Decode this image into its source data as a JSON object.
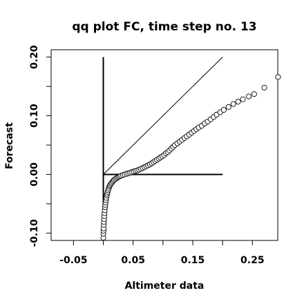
{
  "chart_data": {
    "type": "scatter",
    "title": "qq plot FC, time step no. 13",
    "xlabel": "Altimeter data",
    "ylabel": "Forecast",
    "xlim": [
      -0.0875,
      0.2925
    ],
    "ylim": [
      -0.1125,
      0.2125
    ],
    "x_ticks": [
      -0.05,
      0.0,
      0.05,
      0.1,
      0.15,
      0.2,
      0.25
    ],
    "x_tick_labels": [
      "-0.05",
      "",
      "0.05",
      "",
      "0.15",
      "",
      "0.25"
    ],
    "y_ticks": [
      -0.1,
      -0.05,
      0.0,
      0.05,
      0.1,
      0.15,
      0.2
    ],
    "y_tick_labels": [
      "-0.10",
      "",
      "0.00",
      "",
      "0.10",
      "",
      "0.20"
    ],
    "grid": false,
    "reference_lines": {
      "vertical": {
        "x": 0.0,
        "y_from": -0.1,
        "y_to": 0.2
      },
      "horizontal": {
        "y": 0.0,
        "x_from": 0.0,
        "x_to": 0.2
      },
      "diagonal": {
        "from": [
          0.0,
          0.0
        ],
        "to": [
          0.2,
          0.2
        ]
      }
    },
    "series": [
      {
        "marker": "open-circle",
        "points": [
          [
            0.0,
            -0.108
          ],
          [
            0.0002,
            -0.101
          ],
          [
            0.0004,
            -0.096
          ],
          [
            0.0006,
            -0.092
          ],
          [
            0.0008,
            -0.086
          ],
          [
            0.001,
            -0.081
          ],
          [
            0.0013,
            -0.076
          ],
          [
            0.0016,
            -0.071
          ],
          [
            0.002,
            -0.066
          ],
          [
            0.0024,
            -0.061
          ],
          [
            0.0028,
            -0.056
          ],
          [
            0.0033,
            -0.052
          ],
          [
            0.0038,
            -0.048
          ],
          [
            0.0044,
            -0.044
          ],
          [
            0.005,
            -0.04
          ],
          [
            0.0057,
            -0.036
          ],
          [
            0.0064,
            -0.033
          ],
          [
            0.0072,
            -0.03
          ],
          [
            0.008,
            -0.027
          ],
          [
            0.009,
            -0.024
          ],
          [
            0.01,
            -0.021
          ],
          [
            0.011,
            -0.019
          ],
          [
            0.012,
            -0.017
          ],
          [
            0.0135,
            -0.015
          ],
          [
            0.015,
            -0.013
          ],
          [
            0.0165,
            -0.011
          ],
          [
            0.018,
            -0.0095
          ],
          [
            0.02,
            -0.008
          ],
          [
            0.022,
            -0.0065
          ],
          [
            0.024,
            -0.005
          ],
          [
            0.026,
            -0.004
          ],
          [
            0.028,
            -0.003
          ],
          [
            0.03,
            -0.002
          ],
          [
            0.033,
            -0.001
          ],
          [
            0.036,
            0.0
          ],
          [
            0.039,
            0.001
          ],
          [
            0.042,
            0.002
          ],
          [
            0.045,
            0.003
          ],
          [
            0.048,
            0.004
          ],
          [
            0.051,
            0.005
          ],
          [
            0.054,
            0.006
          ],
          [
            0.057,
            0.007
          ],
          [
            0.06,
            0.008
          ],
          [
            0.063,
            0.0095
          ],
          [
            0.066,
            0.011
          ],
          [
            0.069,
            0.0125
          ],
          [
            0.072,
            0.014
          ],
          [
            0.075,
            0.0155
          ],
          [
            0.078,
            0.017
          ],
          [
            0.081,
            0.019
          ],
          [
            0.084,
            0.021
          ],
          [
            0.087,
            0.023
          ],
          [
            0.09,
            0.025
          ],
          [
            0.093,
            0.027
          ],
          [
            0.096,
            0.029
          ],
          [
            0.099,
            0.031
          ],
          [
            0.102,
            0.033
          ],
          [
            0.105,
            0.036
          ],
          [
            0.108,
            0.038
          ],
          [
            0.111,
            0.041
          ],
          [
            0.114,
            0.044
          ],
          [
            0.117,
            0.047
          ],
          [
            0.12,
            0.05
          ],
          [
            0.124,
            0.053
          ],
          [
            0.128,
            0.056
          ],
          [
            0.132,
            0.059
          ],
          [
            0.136,
            0.062
          ],
          [
            0.14,
            0.065
          ],
          [
            0.144,
            0.068
          ],
          [
            0.148,
            0.071
          ],
          [
            0.152,
            0.074
          ],
          [
            0.156,
            0.077
          ],
          [
            0.16,
            0.08
          ],
          [
            0.165,
            0.083
          ],
          [
            0.17,
            0.087
          ],
          [
            0.175,
            0.09
          ],
          [
            0.18,
            0.094
          ],
          [
            0.185,
            0.098
          ],
          [
            0.19,
            0.102
          ],
          [
            0.196,
            0.106
          ],
          [
            0.202,
            0.11
          ],
          [
            0.21,
            0.115
          ],
          [
            0.218,
            0.12
          ],
          [
            0.226,
            0.124
          ],
          [
            0.234,
            0.128
          ],
          [
            0.244,
            0.133
          ],
          [
            0.253,
            0.137
          ],
          [
            0.27,
            0.148
          ],
          [
            0.293,
            0.166
          ]
        ]
      }
    ]
  }
}
